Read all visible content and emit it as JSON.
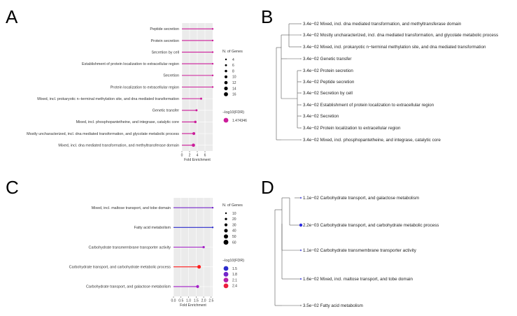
{
  "panels": {
    "A": "A",
    "B": "B",
    "C": "C",
    "D": "D"
  },
  "chart_data": [
    {
      "panel": "A",
      "type": "lollipop",
      "title": "",
      "xlabel": "Fold Enrichment",
      "xlim": [
        0,
        8
      ],
      "xticks": [
        "0",
        "2",
        "4",
        "6"
      ],
      "categories": [
        "Peptide secretion",
        "Protein secretion",
        "Secretion by cell",
        "Establishment of protein localization to extracellular region",
        "Secretion",
        "Protein localization to extracellular region",
        "Mixed, incl. prokaryotic n−terminal methylation site, and dna mediated transformation",
        "Genetic transfer",
        "Mixed, incl. phosphopantetheine, and integrase, catalytic core",
        "Mostly uncharacterized, incl. dna mediated transformation, and glycolate metabolic process",
        "Mixed, incl. dna mediated transformation, and methyltransferase domain"
      ],
      "fold_enrichment": [
        8,
        8,
        8,
        8,
        8,
        8,
        5,
        3.8,
        3.5,
        3.1,
        3.0
      ],
      "n_genes": [
        4,
        4,
        4,
        4,
        4,
        4,
        6,
        6,
        8,
        10,
        12
      ],
      "neg_log10_fdr": [
        1.474346,
        1.474346,
        1.474346,
        1.474346,
        1.474346,
        1.474346,
        1.474346,
        1.474346,
        1.474346,
        1.474346,
        1.474346
      ],
      "size_legend": {
        "title": "N. of Genes",
        "values": [
          "4",
          "6",
          "8",
          "10",
          "12",
          "14",
          "16"
        ]
      },
      "color_legend": {
        "title": "−log10(FDR)",
        "values": [
          "1.474346"
        ]
      },
      "colors": {
        "point": "#cc1c9a",
        "panel_bg": "#ebebeb",
        "grid": "#ffffff"
      }
    },
    {
      "panel": "C",
      "type": "lollipop",
      "title": "",
      "xlabel": "Fold Enrichment",
      "xlim": [
        0,
        2.6
      ],
      "xticks": [
        "0.0",
        "0.5",
        "1.0",
        "1.5",
        "2.0",
        "2.5"
      ],
      "categories": [
        "Mixed, incl. maltose transport, and tobe domain",
        "Fatty acid metabolism",
        "Carbohydrate transmembrane transporter activity",
        "Carbohydrate transport, and carbohydrate metabolic process",
        "Carbohydrate transport, and galactose metabolism"
      ],
      "fold_enrichment": [
        2.6,
        2.6,
        2.0,
        1.7,
        1.6
      ],
      "n_genes": [
        10,
        10,
        20,
        40,
        30
      ],
      "neg_log10_fdr": [
        1.8,
        1.5,
        2.0,
        2.7,
        2.0
      ],
      "size_legend": {
        "title": "N. of Genes",
        "values": [
          "10",
          "20",
          "30",
          "40",
          "50",
          "60"
        ]
      },
      "color_legend": {
        "title": "−log10(FDR)",
        "values": [
          "1.5",
          "1.8",
          "2.1",
          "2.4"
        ]
      },
      "colors": {
        "low": "#2c2ccc",
        "mid": "#a420c8",
        "high": "#ff1c1c",
        "panel_bg": "#ebebeb",
        "grid": "#ffffff"
      }
    }
  ],
  "trees": {
    "B": {
      "labels": [
        "3.4e−02 Mixed, incl. dna mediated transformation, and methyltransferase domain",
        "3.4e−02 Mostly uncharacterized, incl. dna mediated transformation, and glycolate metabolic process",
        "3.4e−02 Mixed, incl. prokaryotic n−terminal methylation site, and dna mediated transformation",
        "3.4e−02 Genetic transfer",
        "3.4e−02 Protein secretion",
        "3.4e−02 Peptide secretion",
        "3.4e−02 Secretion by cell",
        "3.4e−02 Establishment of protein localization to extracellular region",
        "3.4e−02 Secretion",
        "3.4e−02 Protein localization to extracellular region",
        "3.4e−02 Mixed, incl. phosphopantetheine, and integrase, catalytic core"
      ]
    },
    "D": {
      "labels": [
        "1.1e−02 Carbohydrate transport, and galactose metabolism",
        "2.2e−03 Carbohydrate transport, and carbohydrate metabolic process",
        "1.1e−02 Carbohydrate transmembrane transporter activity",
        "1.6e−02 Mixed, incl. maltose transport, and tobe domain",
        "3.5e−02 Fatty acid metabolism"
      ],
      "tip_colors": [
        "#6a6ae0",
        "#2a2ae0",
        "#6a6ae0",
        "#6a6ae0",
        "#aaaaaa"
      ]
    }
  }
}
